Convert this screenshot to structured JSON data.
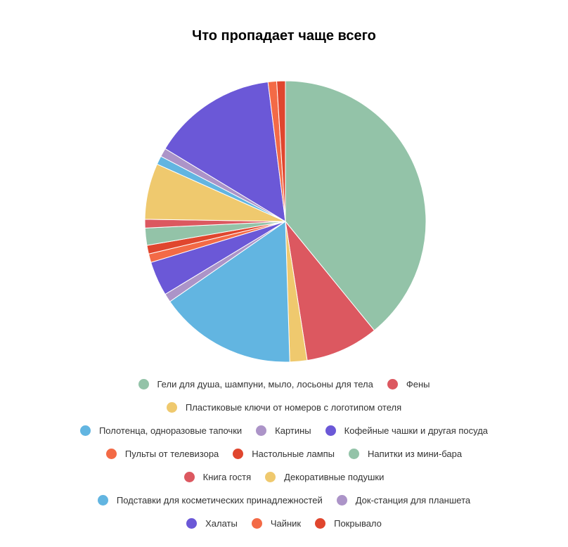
{
  "chart_data": {
    "type": "pie",
    "title": "Что пропадает чаще всего",
    "labels": [
      "Гели для душа, шампуни, мыло, лосьоны для тела",
      "Фены",
      "Пластиковые ключи от номеров с логотипом отеля",
      "Полотенца, одноразовые тапочки",
      "Картины",
      "Кофейные чашки и другая посуда",
      "Пульты от телевизора",
      "Настольные лампы",
      "Напитки из мини-бара",
      "Книга гостя",
      "Декоративные подушки",
      "Подставки для косметических принадлежностей",
      "Док-станция для планшета",
      "Халаты",
      "Чайник",
      "Покрывало"
    ],
    "values": [
      39.5,
      8.5,
      2.0,
      16.0,
      1.0,
      4.0,
      1.0,
      1.0,
      2.0,
      1.0,
      6.5,
      1.0,
      1.0,
      14.5,
      1.0,
      1.0
    ],
    "colors": [
      "#93c3a8",
      "#dc5860",
      "#efc96e",
      "#62b5e1",
      "#ac94c8",
      "#6b58d7",
      "#f36a46",
      "#e0462e",
      "#93c3a8",
      "#dc5860",
      "#efc96e",
      "#62b5e1",
      "#ac94c8",
      "#6b58d7",
      "#f36a46",
      "#e0462e"
    ],
    "start_angle": "12 o'clock",
    "direction": "clockwise",
    "legend_position": "bottom",
    "legend_rows": [
      [
        0,
        1
      ],
      [
        2
      ],
      [
        3,
        4,
        5
      ],
      [
        6,
        7,
        8
      ],
      [
        9,
        10
      ],
      [
        11,
        12
      ],
      [
        13,
        14,
        15
      ]
    ]
  }
}
